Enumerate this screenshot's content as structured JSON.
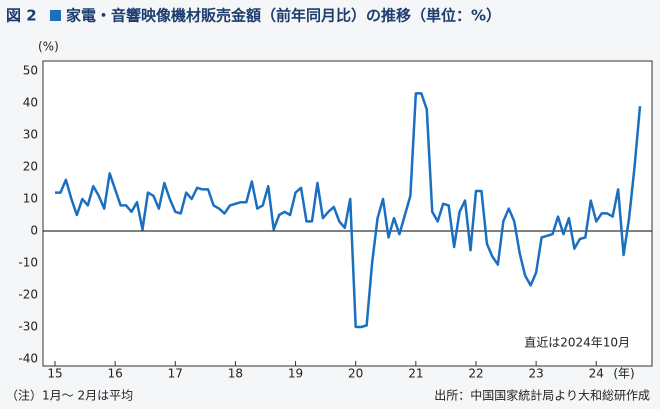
{
  "figure_label": "図 2",
  "chart_data": {
    "type": "line",
    "title": "家電・音響映像機材販売金額（前年同月比）の推移（単位：%）",
    "y_label": "(%)",
    "x_label": "(年)",
    "annotation": "直近は2024年10月",
    "categories": [
      "15",
      null,
      null,
      null,
      null,
      null,
      null,
      null,
      null,
      null,
      null,
      "16",
      null,
      null,
      null,
      null,
      null,
      null,
      null,
      null,
      null,
      null,
      "17",
      null,
      null,
      null,
      null,
      null,
      null,
      null,
      null,
      null,
      null,
      "18",
      null,
      null,
      null,
      null,
      null,
      null,
      null,
      null,
      null,
      null,
      "19",
      null,
      null,
      null,
      null,
      null,
      null,
      null,
      null,
      null,
      null,
      "20",
      null,
      null,
      null,
      null,
      null,
      null,
      null,
      null,
      null,
      null,
      "21",
      null,
      null,
      null,
      null,
      null,
      null,
      null,
      null,
      null,
      null,
      "22",
      null,
      null,
      null,
      null,
      null,
      null,
      null,
      null,
      null,
      null,
      "23",
      null,
      null,
      null,
      null,
      null,
      null,
      null,
      null,
      null,
      null,
      "24",
      null,
      null,
      null,
      null,
      null,
      null,
      null,
      null
    ],
    "values": [
      12,
      12,
      16,
      10,
      5,
      10,
      8,
      14,
      11,
      7,
      18,
      13,
      8,
      8,
      6,
      9,
      0.5,
      12,
      11,
      7,
      15,
      10,
      6,
      5.5,
      12,
      10,
      13.5,
      13,
      13,
      8,
      7,
      5.5,
      8,
      8.5,
      9,
      9,
      15.5,
      7,
      8,
      14,
      0.5,
      5,
      6,
      5,
      12,
      13.5,
      3,
      3,
      15,
      4,
      6,
      7.5,
      3,
      1,
      10,
      -30,
      -30,
      -29.5,
      -10,
      4,
      10,
      -2,
      4,
      -1,
      5,
      11,
      43,
      43,
      38,
      6,
      3,
      8.5,
      8,
      -5,
      6,
      9.5,
      -6,
      12.5,
      12.5,
      -4,
      -8,
      -10.5,
      3,
      7,
      3,
      -7,
      -14,
      -17,
      -13,
      -2,
      -1.5,
      -1,
      4.5,
      -1,
      4,
      -5.5,
      -2.5,
      -2,
      9.5,
      3,
      5.5,
      5.5,
      4.5,
      13,
      -7.5,
      4,
      20,
      39
    ],
    "color": "#1a6fc0",
    "ylim": [
      -40,
      50
    ],
    "yticks": [
      -40,
      -30,
      -20,
      -10,
      0,
      10,
      20,
      30,
      40,
      50
    ]
  },
  "note": "（注）1月～ 2月は平均",
  "source": "出所：中国国家統計局より大和総研作成"
}
